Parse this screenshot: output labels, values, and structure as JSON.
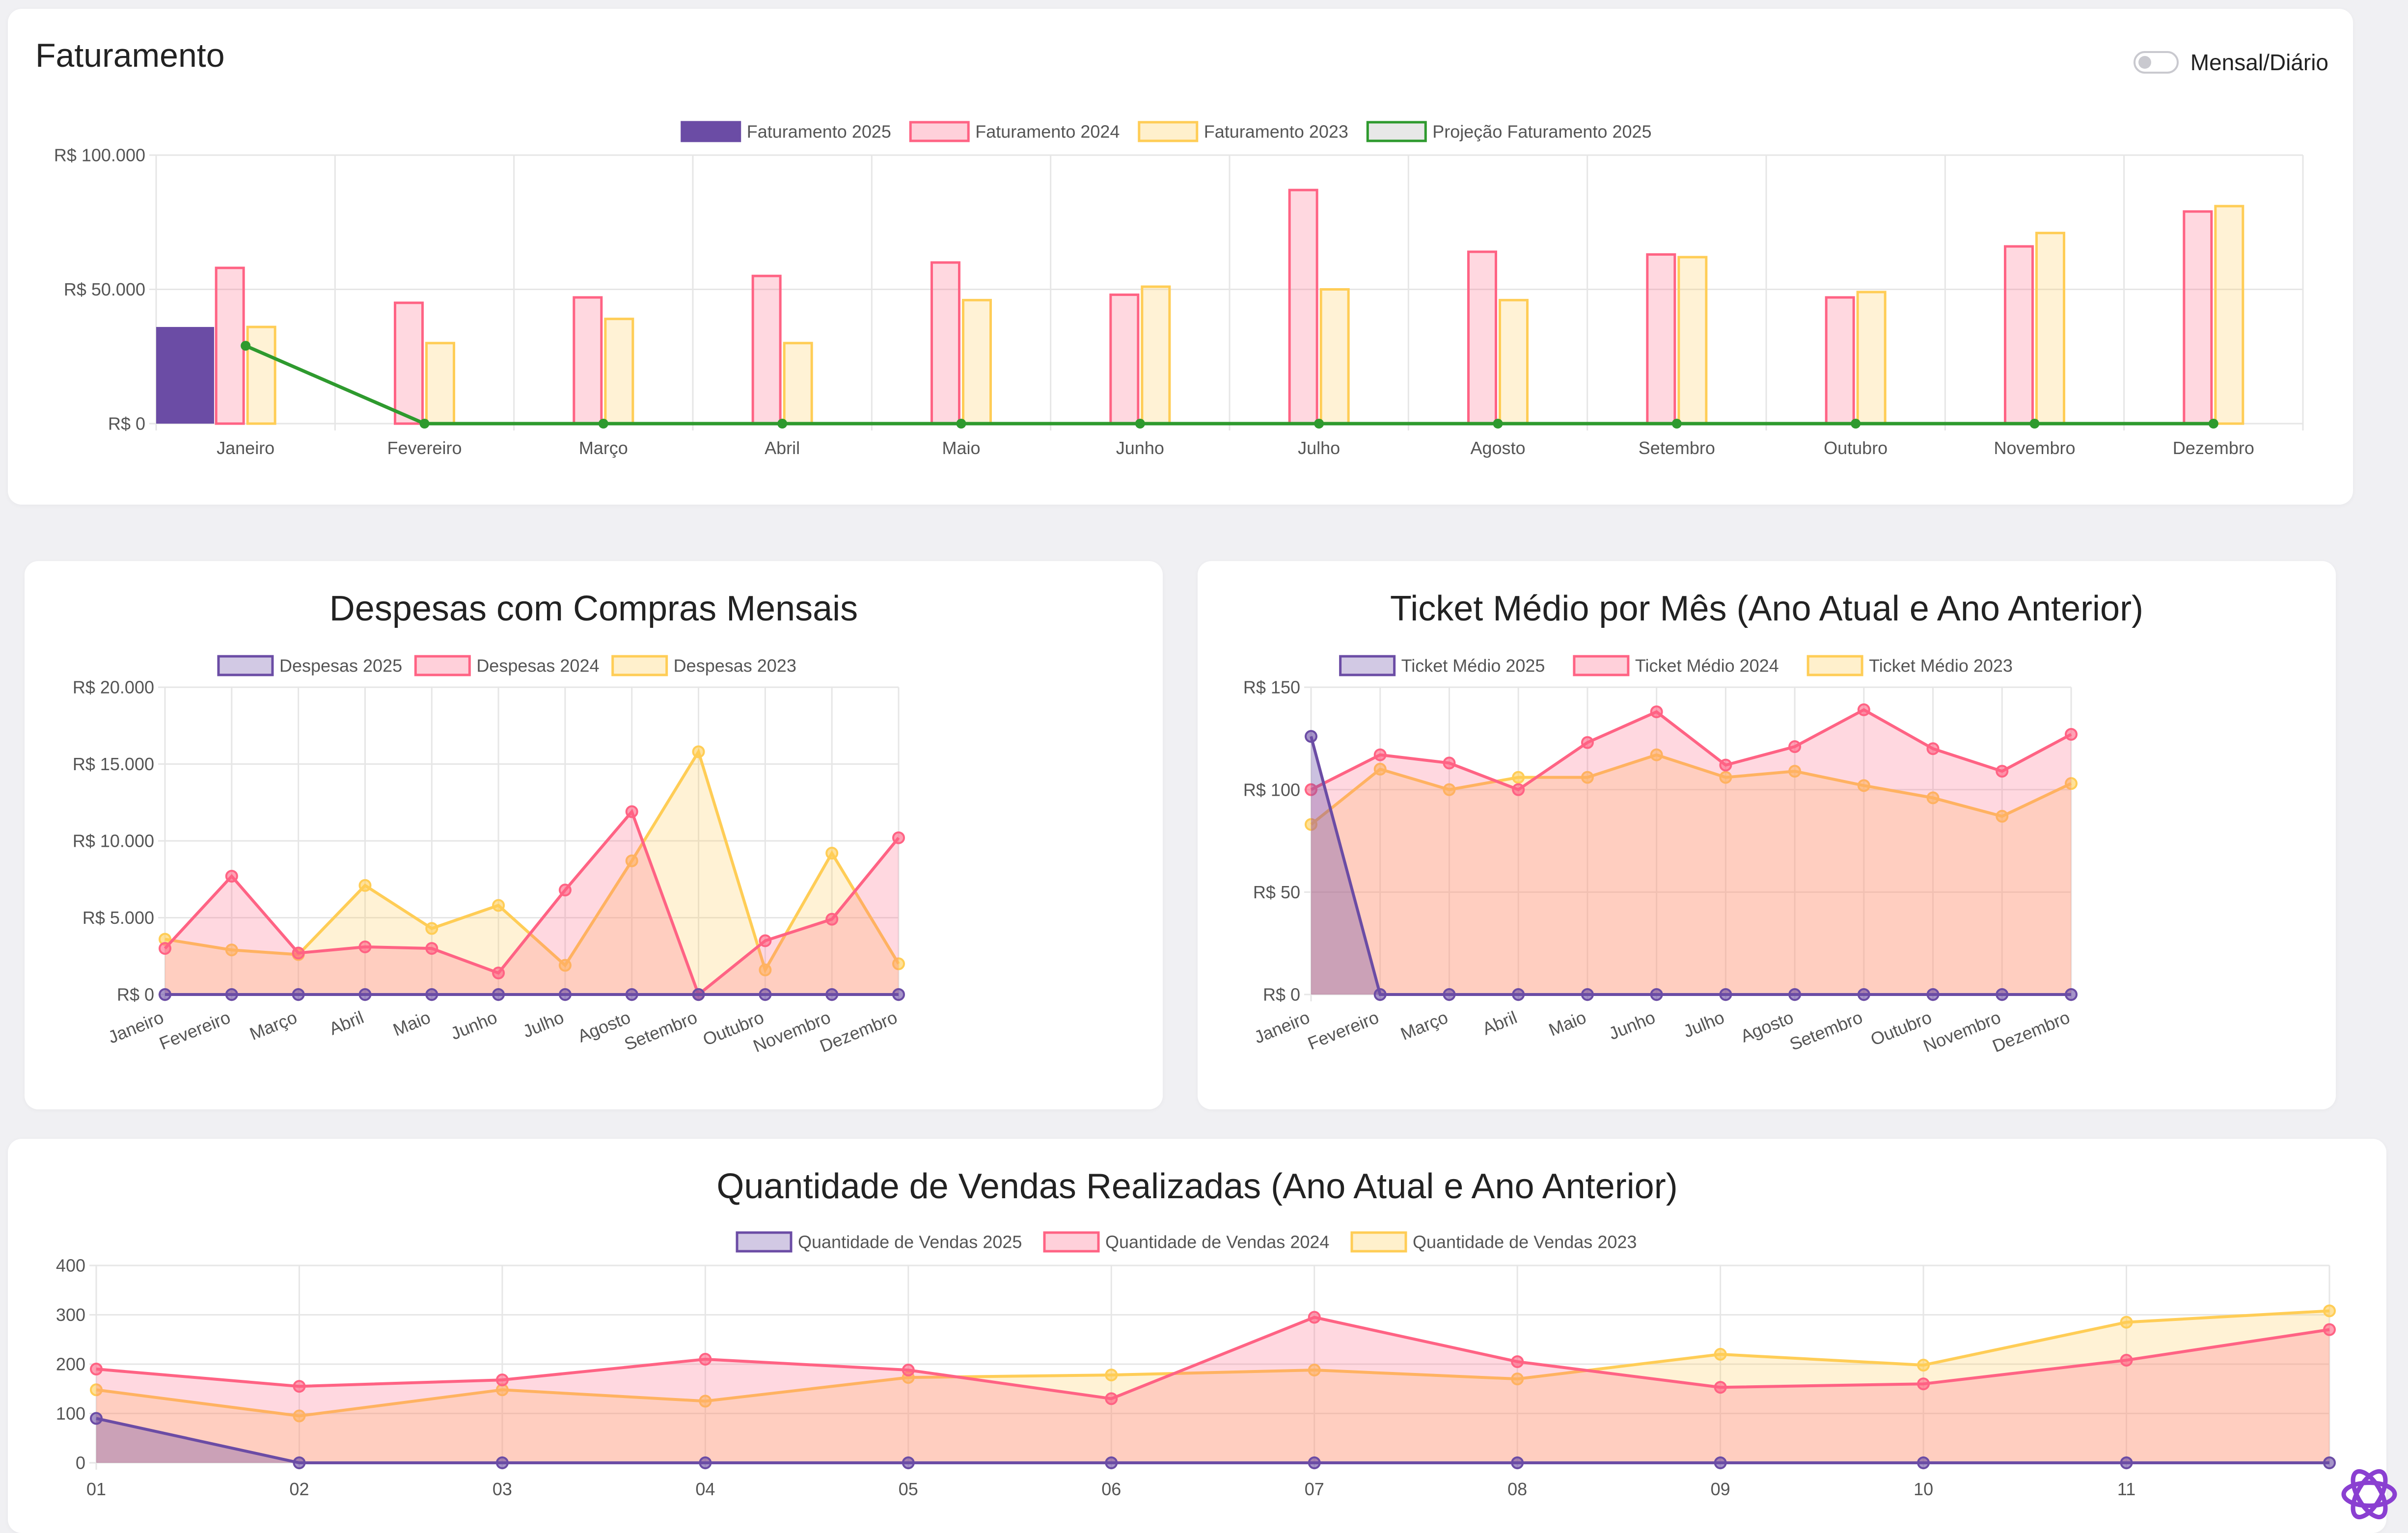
{
  "colors": {
    "purple": "#6b4ca5",
    "pink": "#ff6384",
    "yellow": "#ffcd56",
    "green": "#2e9a2e",
    "grid": "#e6e6e6",
    "text": "#555555"
  },
  "toggle": {
    "label": "Mensal/Diário",
    "on": false
  },
  "logo": {
    "icon": "openai-logo-icon"
  },
  "chart_data": [
    {
      "id": "faturamento",
      "type": "bar",
      "title": "Faturamento",
      "categories": [
        "Janeiro",
        "Fevereiro",
        "Março",
        "Abril",
        "Maio",
        "Junho",
        "Julho",
        "Agosto",
        "Setembro",
        "Outubro",
        "Novembro",
        "Dezembro"
      ],
      "y_ticks": [
        "R$ 0",
        "R$ 50.000",
        "R$ 100.000"
      ],
      "ylim": [
        0,
        100000
      ],
      "grid": true,
      "legend": "top",
      "series": [
        {
          "name": "Faturamento 2025",
          "kind": "bar",
          "color": "purple",
          "values": [
            36000,
            0,
            0,
            0,
            0,
            0,
            0,
            0,
            0,
            0,
            0,
            0
          ]
        },
        {
          "name": "Faturamento 2024",
          "kind": "bar",
          "color": "pink",
          "values": [
            58000,
            45000,
            47000,
            55000,
            60000,
            48000,
            87000,
            64000,
            63000,
            47000,
            66000,
            79000
          ]
        },
        {
          "name": "Faturamento 2023",
          "kind": "bar",
          "color": "yellow",
          "values": [
            36000,
            30000,
            39000,
            30000,
            46000,
            51000,
            50000,
            46000,
            62000,
            49000,
            71000,
            81000
          ]
        },
        {
          "name": "Projeção Faturamento 2025",
          "kind": "line",
          "color": "green",
          "values": [
            29000,
            0,
            0,
            0,
            0,
            0,
            0,
            0,
            0,
            0,
            0,
            0
          ]
        }
      ]
    },
    {
      "id": "despesas",
      "type": "area",
      "title": "Despesas com Compras Mensais",
      "categories": [
        "Janeiro",
        "Fevereiro",
        "Março",
        "Abril",
        "Maio",
        "Junho",
        "Julho",
        "Agosto",
        "Setembro",
        "Outubro",
        "Novembro",
        "Dezembro"
      ],
      "y_ticks": [
        "R$ 0",
        "R$ 5.000",
        "R$ 10.000",
        "R$ 15.000",
        "R$ 20.000"
      ],
      "ylim": [
        0,
        20000
      ],
      "grid": true,
      "legend": "top",
      "series": [
        {
          "name": "Despesas 2025",
          "color": "purple",
          "values": [
            0,
            0,
            0,
            0,
            0,
            0,
            0,
            0,
            0,
            0,
            0,
            0
          ]
        },
        {
          "name": "Despesas 2024",
          "color": "pink",
          "values": [
            3000,
            7700,
            2700,
            3100,
            3000,
            1400,
            6800,
            11900,
            0,
            3500,
            4900,
            10200
          ]
        },
        {
          "name": "Despesas 2023",
          "color": "yellow",
          "values": [
            3600,
            2900,
            2600,
            7100,
            4300,
            5800,
            1900,
            8700,
            15800,
            1600,
            9200,
            2000
          ]
        }
      ]
    },
    {
      "id": "ticket",
      "type": "area",
      "title": "Ticket Médio por Mês (Ano Atual e Ano Anterior)",
      "categories": [
        "Janeiro",
        "Fevereiro",
        "Março",
        "Abril",
        "Maio",
        "Junho",
        "Julho",
        "Agosto",
        "Setembro",
        "Outubro",
        "Novembro",
        "Dezembro"
      ],
      "y_ticks": [
        "R$ 0",
        "R$ 50",
        "R$ 100",
        "R$ 150"
      ],
      "ylim": [
        0,
        150
      ],
      "grid": true,
      "legend": "top",
      "series": [
        {
          "name": "Ticket Médio 2025",
          "color": "purple",
          "values": [
            126,
            0,
            0,
            0,
            0,
            0,
            0,
            0,
            0,
            0,
            0,
            0
          ]
        },
        {
          "name": "Ticket Médio 2024",
          "color": "pink",
          "values": [
            100,
            117,
            113,
            100,
            123,
            138,
            112,
            121,
            139,
            120,
            109,
            127
          ]
        },
        {
          "name": "Ticket Médio 2023",
          "color": "yellow",
          "values": [
            83,
            110,
            100,
            106,
            106,
            117,
            106,
            109,
            102,
            96,
            87,
            103
          ]
        }
      ]
    },
    {
      "id": "vendas",
      "type": "area",
      "title": "Quantidade de Vendas Realizadas (Ano Atual e Ano Anterior)",
      "categories": [
        "01",
        "02",
        "03",
        "04",
        "05",
        "06",
        "07",
        "08",
        "09",
        "10",
        "11",
        ""
      ],
      "y_ticks": [
        "0",
        "100",
        "200",
        "300",
        "400"
      ],
      "ylim": [
        0,
        400
      ],
      "grid": true,
      "legend": "top",
      "series": [
        {
          "name": "Quantidade de Vendas 2025",
          "color": "purple",
          "values": [
            90,
            0,
            0,
            0,
            0,
            0,
            0,
            0,
            0,
            0,
            0,
            0
          ]
        },
        {
          "name": "Quantidade de Vendas 2024",
          "color": "pink",
          "values": [
            190,
            155,
            168,
            210,
            188,
            130,
            295,
            205,
            153,
            160,
            208,
            270
          ]
        },
        {
          "name": "Quantidade de Vendas 2023",
          "color": "yellow",
          "values": [
            148,
            95,
            148,
            125,
            173,
            178,
            188,
            170,
            220,
            198,
            285,
            308
          ]
        }
      ]
    }
  ]
}
